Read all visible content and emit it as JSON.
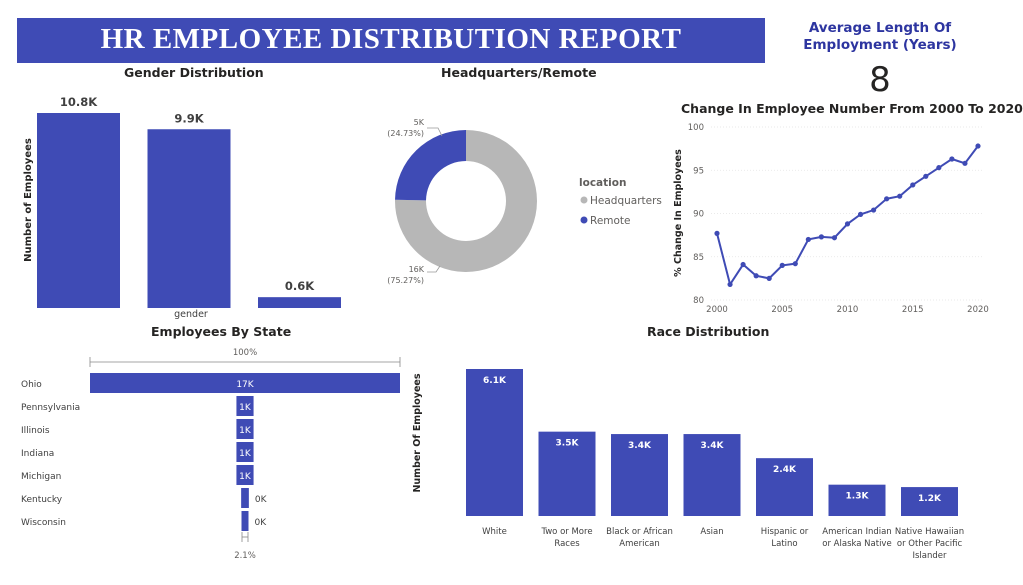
{
  "report": {
    "title": "HR EMPLOYEE DISTRIBUTION REPORT",
    "card_label_line1": "Average Length Of",
    "card_label_line2": "Employment (Years)",
    "card_value": "8"
  },
  "colors": {
    "primary": "#3f4bb5",
    "donut_grey": "#b7b7b7"
  },
  "chart_data": [
    {
      "type": "bar",
      "title": "Gender Distribution",
      "xlabel": "gender",
      "ylabel": "Number of Employees",
      "categories": [
        "",
        "",
        ""
      ],
      "values": [
        10.8,
        9.9,
        0.6
      ],
      "data_labels": [
        "10.8K",
        "9.9K",
        "0.6K"
      ],
      "ylim": [
        0,
        11
      ]
    },
    {
      "type": "pie",
      "title": "Headquarters/Remote",
      "legend_title": "location",
      "legend_position": "right",
      "slices": [
        {
          "label": "Headquarters",
          "value": 16,
          "value_label": "16K",
          "percent_label": "(75.27%)",
          "percent": 75.27,
          "color": "#b7b7b7"
        },
        {
          "label": "Remote",
          "value": 5,
          "value_label": "5K",
          "percent_label": "(24.73%)",
          "percent": 24.73,
          "color": "#3f4bb5"
        }
      ]
    },
    {
      "type": "line",
      "title": "Change In Employee Number From 2000 To 2020",
      "xlabel": "",
      "ylabel": "% Change In Employees",
      "xlim": [
        2000,
        2020
      ],
      "ylim": [
        80,
        100
      ],
      "xticks": [
        "2000",
        "2005",
        "2010",
        "2015",
        "2020"
      ],
      "yticks": [
        "80",
        "85",
        "90",
        "95",
        "100"
      ],
      "x": [
        2000,
        2001,
        2002,
        2003,
        2004,
        2005,
        2006,
        2007,
        2008,
        2009,
        2010,
        2011,
        2012,
        2013,
        2014,
        2015,
        2016,
        2017,
        2018,
        2019,
        2020
      ],
      "y": [
        87.7,
        81.8,
        84.1,
        82.8,
        82.5,
        84.0,
        84.2,
        87.0,
        87.3,
        87.2,
        88.8,
        89.9,
        90.4,
        91.7,
        92.0,
        93.3,
        94.3,
        95.3,
        96.3,
        95.8,
        97.8
      ]
    },
    {
      "type": "bar",
      "orientation": "horizontal",
      "title": "Employees By State",
      "categories": [
        "Ohio",
        "Pennsylvania",
        "Illinois",
        "Indiana",
        "Michigan",
        "Kentucky",
        "Wisconsin"
      ],
      "values": [
        17,
        1,
        1,
        1,
        1,
        0.45,
        0.38
      ],
      "data_labels": [
        "17K",
        "1K",
        "1K",
        "1K",
        "1K",
        "0K",
        "0K"
      ],
      "top_label": "100%",
      "bottom_label": "2.1%"
    },
    {
      "type": "bar",
      "title": "Race Distribution",
      "xlabel": "",
      "ylabel": "Number Of Employees",
      "categories": [
        "White",
        "Two or More Races",
        "Black or African American",
        "Asian",
        "Hispanic or Latino",
        "American Indian or Alaska Native",
        "Native Hawaiian or Other Pacific Islander"
      ],
      "category_lines": [
        [
          "White"
        ],
        [
          "Two or More",
          "Races"
        ],
        [
          "Black or African",
          "American"
        ],
        [
          "Asian"
        ],
        [
          "Hispanic or",
          "Latino"
        ],
        [
          "American Indian",
          "or Alaska Native"
        ],
        [
          "Native Hawaiian",
          "or Other Pacific",
          "Islander"
        ]
      ],
      "values": [
        6.1,
        3.5,
        3.4,
        3.4,
        2.4,
        1.3,
        1.2
      ],
      "data_labels": [
        "6.1K",
        "3.5K",
        "3.4K",
        "3.4K",
        "2.4K",
        "1.3K",
        "1.2K"
      ],
      "ylim": [
        0,
        6.1
      ]
    }
  ]
}
